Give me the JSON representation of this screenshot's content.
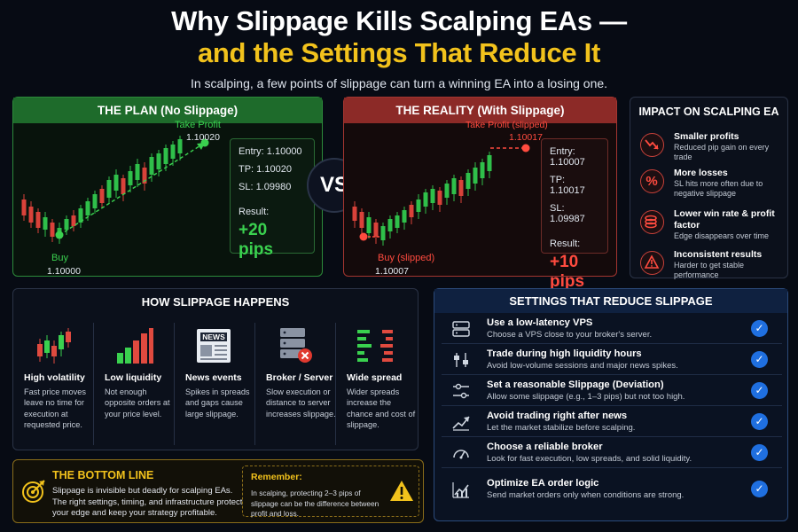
{
  "header": {
    "title_line1": "Why Slippage Kills Scalping EAs —",
    "title_line2": "and the Settings That Reduce It",
    "subtitle": "In scalping, a few points of slippage can turn a winning EA into a losing one."
  },
  "plan": {
    "title": "THE PLAN (No Slippage)",
    "tp_label": "Take Profit",
    "tp_price": "1.10020",
    "buy_label": "Buy",
    "buy_price": "1.10000",
    "entry": "Entry:  1.10000",
    "tp": "TP:   1.10020",
    "sl": "SL:   1.09980",
    "result_label": "Result:",
    "result_value": "+20 pips",
    "accent": "#3ad14f"
  },
  "vs": "VS",
  "reality": {
    "title": "THE REALITY (With Slippage)",
    "tp_label": "Take Profit (slipped)",
    "tp_price": "1.10017",
    "buy_label": "Buy (slipped)",
    "buy_price": "1.10007",
    "entry": "Entry:  1.10007",
    "tp": "TP:   1.10017",
    "sl": "SL:   1.09987",
    "result_label": "Result:",
    "result_value": "+10 pips",
    "accent": "#ff4b3f"
  },
  "impact": {
    "title": "IMPACT ON SCALPING EA",
    "items": [
      {
        "title": "Smaller profits",
        "desc": "Reduced pip gain on every trade",
        "icon": "trend-down-icon"
      },
      {
        "title": "More losses",
        "desc": "SL hits more often due to negative slippage",
        "icon": "percent-icon"
      },
      {
        "title": "Lower win rate & profit factor",
        "desc": "Edge disappears over time",
        "icon": "coins-icon"
      },
      {
        "title": "Inconsistent results",
        "desc": "Harder to get stable performance",
        "icon": "warning-icon"
      }
    ]
  },
  "how": {
    "title": "HOW SLIPPAGE HAPPENS",
    "news_badge": "NEWS",
    "items": [
      {
        "title": "High volatility",
        "desc": "Fast price moves leave no time for execution at requested price."
      },
      {
        "title": "Low liquidity",
        "desc": "Not enough opposite orders at your price level."
      },
      {
        "title": "News events",
        "desc": "Spikes in spreads and gaps cause large slippage."
      },
      {
        "title": "Broker / Server",
        "desc": "Slow execution or distance to server increases slippage."
      },
      {
        "title": "Wide spread",
        "desc": "Wider spreads increase the chance and cost of slippage."
      }
    ]
  },
  "settings": {
    "title": "SETTINGS THAT REDUCE SLIPPAGE",
    "items": [
      {
        "title": "Use a low-latency VPS",
        "desc": "Choose a VPS close to your broker's server.",
        "icon": "server-icon"
      },
      {
        "title": "Trade during high liquidity hours",
        "desc": "Avoid low-volume sessions and major news spikes.",
        "icon": "sliders-icon"
      },
      {
        "title": "Set a reasonable Slippage (Deviation)",
        "desc": "Allow some slippage (e.g., 1–3 pips) but not too high.",
        "icon": "adjust-icon"
      },
      {
        "title": "Avoid trading right after news",
        "desc": "Let the market stabilize before scalping.",
        "icon": "chart-up-icon"
      },
      {
        "title": "Choose a reliable broker",
        "desc": "Look for fast execution, low spreads, and solid liquidity.",
        "icon": "gauge-icon"
      },
      {
        "title": "Optimize EA order logic",
        "desc": "Send market orders only when conditions are strong.",
        "icon": "chart-line-icon"
      }
    ]
  },
  "bottom": {
    "title": "THE BOTTOM LINE",
    "text": "Slippage is invisible but deadly for scalping EAs. The right settings, timing, and infrastructure protect your edge and keep your strategy profitable.",
    "remember_title": "Remember:",
    "remember_text": "In scalping, protecting 2–3 pips of slippage can be the difference between profit and loss."
  }
}
